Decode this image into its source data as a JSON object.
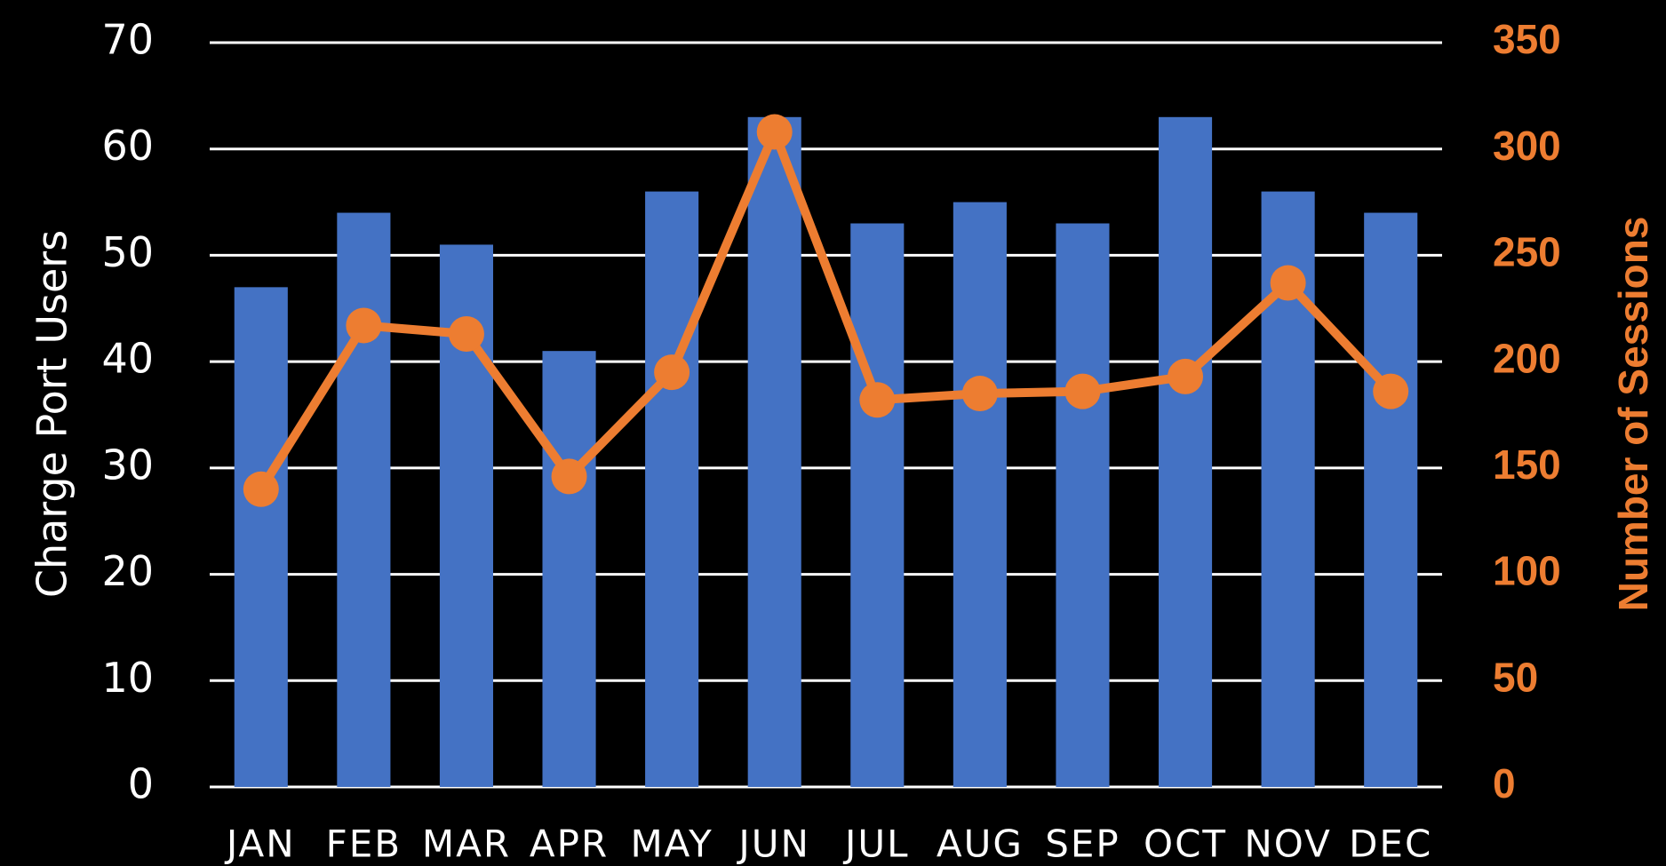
{
  "chart_data": {
    "type": "bar_line",
    "categories": [
      "JAN",
      "FEB",
      "MAR",
      "APR",
      "MAY",
      "JUN",
      "JUL",
      "AUG",
      "SEP",
      "OCT",
      "NOV",
      "DEC"
    ],
    "ylabel": "Charge Port Users",
    "y2label": "Number of Sessions",
    "series": [
      {
        "name": "Charge Port Users",
        "type": "bar",
        "color": "#4472c4",
        "values": [
          47,
          54,
          51,
          41,
          56,
          63,
          53,
          55,
          53,
          63,
          56,
          54
        ]
      },
      {
        "name": "Number of Sessions",
        "type": "line",
        "axis": "y2",
        "color": "#ed7d31",
        "values": [
          140,
          217,
          213,
          146,
          195,
          308,
          182,
          185,
          186,
          193,
          237,
          186
        ]
      }
    ],
    "ylim": [
      0,
      70
    ],
    "yticks": [
      0,
      10,
      20,
      30,
      40,
      50,
      60,
      70
    ],
    "y2lim": [
      0,
      350
    ],
    "y2ticks": [
      0,
      50,
      100,
      150,
      200,
      250,
      300,
      350
    ],
    "grid": true
  }
}
